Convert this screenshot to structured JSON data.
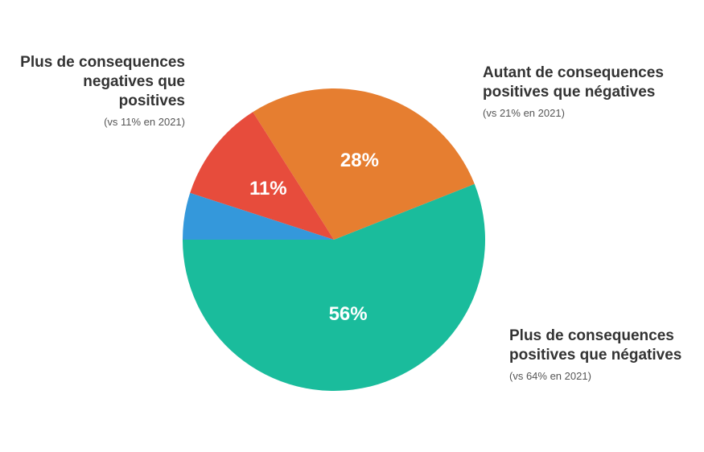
{
  "chart_data": {
    "type": "pie",
    "slices": [
      {
        "key": "positive",
        "value": 56,
        "display": "56%",
        "color": "#1abc9c"
      },
      {
        "key": "equal",
        "value": 28,
        "display": "28%",
        "color": "#e67e30"
      },
      {
        "key": "negative",
        "value": 11,
        "display": "11%",
        "color": "#e74c3c"
      },
      {
        "key": "other",
        "value": 5,
        "display": "",
        "color": "#3498db"
      }
    ],
    "annotations": {
      "negative": {
        "title": "Plus de consequences negatives que positives",
        "note": "(vs 11% en 2021)"
      },
      "equal": {
        "title": "Autant de consequences positives que négatives",
        "note": "(vs 21% en 2021)"
      },
      "positive": {
        "title": "Plus de consequences positives que négatives",
        "note": "(vs 64% en 2021)"
      }
    }
  }
}
